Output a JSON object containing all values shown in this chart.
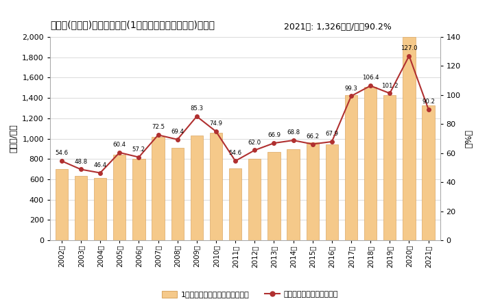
{
  "years": [
    "2002年",
    "2003年",
    "2004年",
    "2005年",
    "2006年",
    "2007年",
    "2008年",
    "2009年",
    "2010年",
    "2011年",
    "2012年",
    "2013年",
    "2014年",
    "2015年",
    "2016年",
    "2017年",
    "2018年",
    "2019年",
    "2020年",
    "2021年"
  ],
  "bar_values": [
    700,
    630,
    615,
    845,
    800,
    1020,
    910,
    1030,
    1060,
    710,
    800,
    870,
    895,
    960,
    940,
    1430,
    1510,
    1430,
    2000,
    1326
  ],
  "line_values": [
    54.6,
    48.8,
    46.4,
    60.4,
    57.2,
    72.5,
    69.4,
    85.3,
    74.9,
    54.6,
    62.0,
    66.9,
    68.8,
    66.2,
    67.9,
    99.3,
    106.4,
    101.2,
    127.0,
    90.2
  ],
  "bar_color": "#f5c98a",
  "bar_edge_color": "#dba865",
  "line_color": "#b03030",
  "marker_color": "#b03030",
  "title": "葛巻町(岩手県)の労働生産性(1人当たり粗付加価値額)の推移",
  "ylabel_left": "［万円/人］",
  "ylabel_right": "［%］",
  "annotation": "2021年: 1,326万円/人，90.2%",
  "ylim_left": [
    0,
    2000
  ],
  "ylim_right": [
    0,
    140
  ],
  "yticks_left": [
    0,
    200,
    400,
    600,
    800,
    1000,
    1200,
    1400,
    1600,
    1800,
    2000
  ],
  "yticks_right": [
    0,
    20,
    40,
    60,
    80,
    100,
    120,
    140
  ],
  "legend_bar": "1人当たり粗付加価値額（左軸）",
  "legend_line": "対全国比（右軸）（右軸）",
  "bg_color": "#ffffff",
  "grid_color": "#cccccc"
}
